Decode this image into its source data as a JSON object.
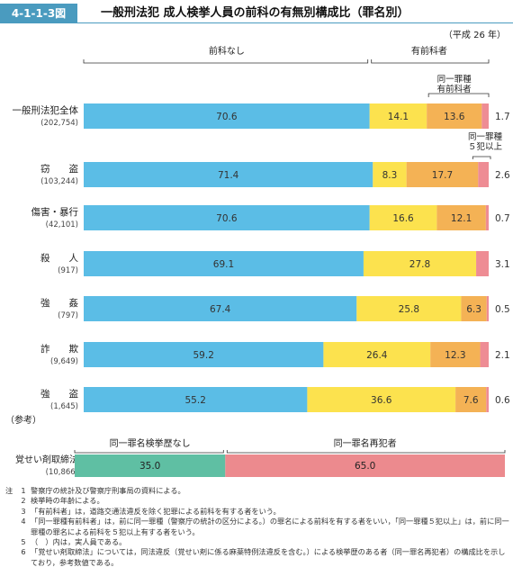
{
  "figure": {
    "number": "4-1-1-3図",
    "title": "一般刑法犯 成人検挙人員の前科の有無別構成比（罪名別）",
    "year_note": "（平成 26 年）"
  },
  "headers": {
    "no_record": "前科なし",
    "with_record": "有前科者",
    "same_type": "同一罪種\n有前科者",
    "same_type_5plus": "同一罪種\n５犯以上"
  },
  "colors": {
    "no_record": "#5bbde6",
    "other_record": "#fce24e",
    "same_type": "#f4b255",
    "same_type_5plus": "#ee8c94",
    "ref_none": "#5fbfa3",
    "ref_same": "#ec8a8e"
  },
  "chart_data": {
    "type": "bar",
    "orientation": "horizontal",
    "stacked": true,
    "unit": "%",
    "categories": [
      {
        "label": "一般刑法犯全体",
        "count": "(202,754)"
      },
      {
        "label": "窃　　盗",
        "count": "(103,244)"
      },
      {
        "label": "傷害・暴行",
        "count": "(42,101)"
      },
      {
        "label": "殺　　人",
        "count": "(917)"
      },
      {
        "label": "強　　姦",
        "count": "(797)"
      },
      {
        "label": "詐　　欺",
        "count": "(9,649)"
      },
      {
        "label": "強　　盗",
        "count": "(1,645)"
      }
    ],
    "series": [
      {
        "key": "no_record",
        "values": [
          70.6,
          71.4,
          70.6,
          69.1,
          67.4,
          59.2,
          55.2
        ]
      },
      {
        "key": "other_record",
        "values": [
          14.1,
          8.3,
          16.6,
          27.8,
          25.8,
          26.4,
          36.6
        ]
      },
      {
        "key": "same_type",
        "values": [
          13.6,
          17.7,
          12.1,
          null,
          6.3,
          12.3,
          7.6
        ]
      },
      {
        "key": "same_type_5plus",
        "values": [
          1.7,
          2.6,
          0.7,
          3.1,
          0.5,
          2.1,
          0.6
        ]
      }
    ],
    "xlim": [
      0,
      100
    ]
  },
  "reference": {
    "label": "（参考）",
    "category": "覚せい剤取締法",
    "count": "(10,866)",
    "header_none": "同一罪名検挙歴なし",
    "header_same": "同一罪名再犯者",
    "values": [
      35.0,
      65.0
    ],
    "value_labels": [
      "35.0",
      "65.0"
    ]
  },
  "notes": [
    {
      "head": "注",
      "num": "1",
      "text": "警察庁の統計及び警察庁刑事局の資料による。"
    },
    {
      "head": "",
      "num": "2",
      "text": "検挙時の年齢による。"
    },
    {
      "head": "",
      "num": "3",
      "text": "「有前科者」は，道路交通法違反を除く犯罪による前科を有する者をいう。"
    },
    {
      "head": "",
      "num": "4",
      "text": "「同一罪種有前科者」は，前に同一罪種（警察庁の統計の区分による。）の罪名による前科を有する者をいい，「同一罪種５犯以上」は，前に同一罪種の罪名による前科を５犯以上有する者をいう。"
    },
    {
      "head": "",
      "num": "5",
      "text": "（　）内は，実人員である。"
    },
    {
      "head": "",
      "num": "6",
      "text": "「覚せい剤取締法」については，同法違反（覚せい剤に係る麻薬特例法違反を含む。）による検挙歴のある者（同一罪名再犯者）の構成比を示しており，参考数値である。"
    }
  ]
}
